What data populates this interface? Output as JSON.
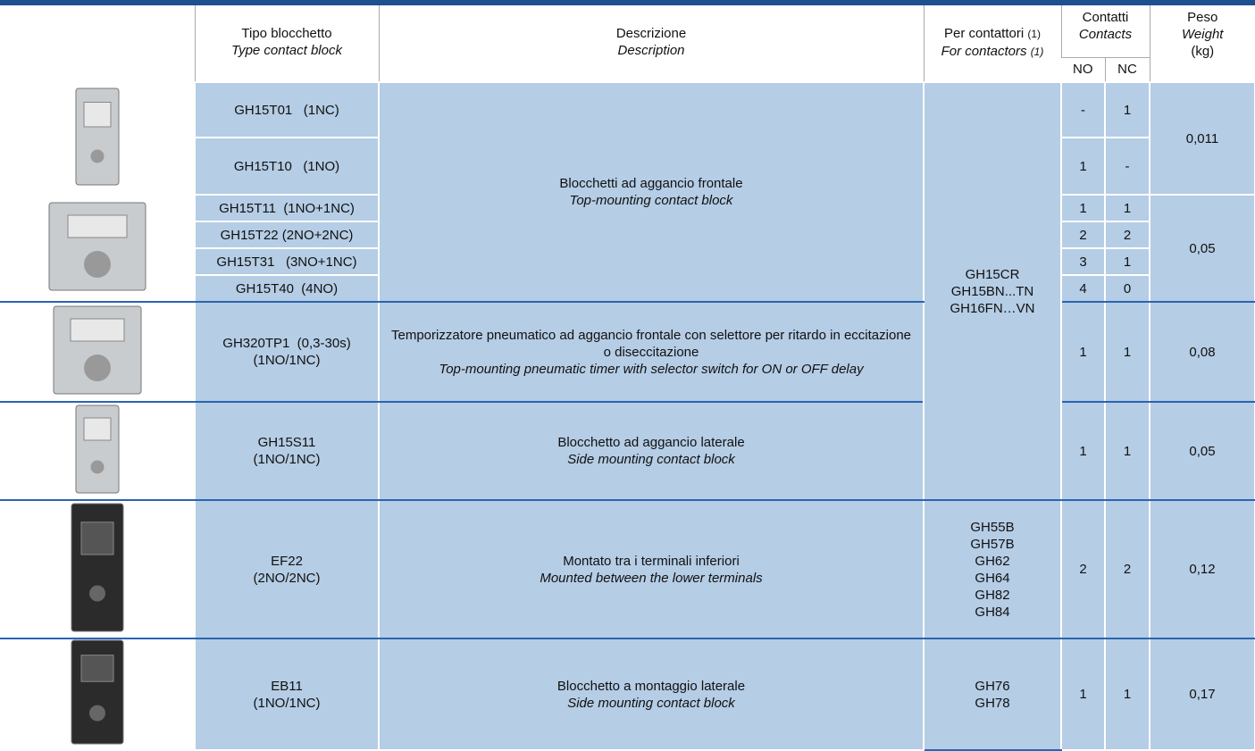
{
  "header": {
    "type_it": "Tipo blocchetto",
    "type_en": "Type contact block",
    "desc_it": "Descrizione",
    "desc_en": "Description",
    "contactors_it": "Per contattori",
    "contactors_en": "For contactors",
    "note": "(1)",
    "contacts_it": "Contatti",
    "contacts_en": "Contacts",
    "no": "NO",
    "nc": "NC",
    "weight_it": "Peso",
    "weight_en": "Weight",
    "weight_unit": "(kg)"
  },
  "rows": [
    {
      "type": [
        "GH15T01   (1NC)"
      ],
      "no": "-",
      "nc": 1
    },
    {
      "type": [
        "GH15T10   (1NO)"
      ],
      "no": 1,
      "nc": "-"
    },
    {
      "type": [
        "GH15T11  (1NO+1NC)"
      ],
      "no": 1,
      "nc": 1
    },
    {
      "type": [
        "GH15T22 (2NO+2NC)"
      ],
      "no": 2,
      "nc": 2
    },
    {
      "type": [
        "GH15T31   (3NO+1NC)"
      ],
      "no": 3,
      "nc": 1
    },
    {
      "type": [
        "GH15T40  (4NO)"
      ],
      "no": 4,
      "nc": 0
    },
    {
      "type": [
        "GH320TP1  (0,3-30s)",
        "(1NO/1NC)"
      ],
      "no": 1,
      "nc": 1
    },
    {
      "type": [
        "GH15S11",
        "(1NO/1NC)"
      ],
      "no": 1,
      "nc": 1
    },
    {
      "type": [
        "EF22",
        "(2NO/2NC)"
      ],
      "no": 2,
      "nc": 2
    },
    {
      "type": [
        "EB11",
        "(1NO/1NC)"
      ],
      "no": 1,
      "nc": 1
    }
  ],
  "descriptions": [
    {
      "it": "Blocchetti ad aggancio frontale",
      "en": "Top-mounting contact block"
    },
    {
      "it": "Temporizzatore pneumatico ad aggancio frontale con selettore per ritardo in eccitazione o diseccitazione",
      "en": "Top-mounting pneumatic timer with selector switch for ON or OFF delay"
    },
    {
      "it": "Blocchetto ad aggancio laterale",
      "en": "Side mounting contact block"
    },
    {
      "it": "Montato tra i terminali inferiori",
      "en": "Mounted between the lower terminals"
    },
    {
      "it": "Blocchetto a montaggio laterale",
      "en": "Side mounting contact block"
    }
  ],
  "contactors": [
    [
      "GH15CR",
      "GH15BN...TN",
      "GH16FN…VN"
    ],
    [
      "GH55B",
      "GH57B",
      "GH62",
      "GH64",
      "GH82",
      "GH84"
    ],
    [
      "GH76",
      "GH78"
    ]
  ],
  "weights": [
    "0,011",
    "0,05",
    "0,08",
    "0,05",
    "0,12",
    "0,17"
  ]
}
